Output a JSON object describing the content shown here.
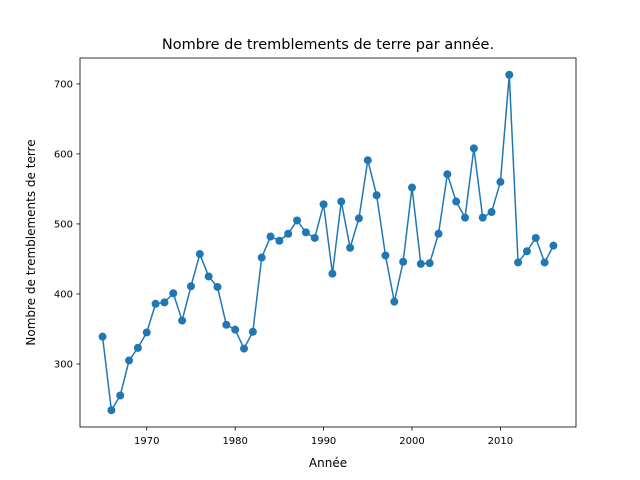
{
  "chart_data": {
    "type": "line",
    "title": "Nombre de tremblements de terre par année.",
    "xlabel": "Année",
    "ylabel": "Nombre de tremblements de terre",
    "xlim": [
      1962.45,
      2018.55
    ],
    "ylim": [
      210,
      737
    ],
    "xticks": [
      1970,
      1980,
      1990,
      2000,
      2010
    ],
    "yticks": [
      300,
      400,
      500,
      600,
      700
    ],
    "grid": false,
    "color": "#1f77b4",
    "markers": true,
    "series": [
      {
        "x": [
          1965,
          1966,
          1967,
          1968,
          1969,
          1970,
          1971,
          1972,
          1973,
          1974,
          1975,
          1976,
          1977,
          1978,
          1979,
          1980,
          1981,
          1982,
          1983,
          1984,
          1985,
          1986,
          1987,
          1988,
          1989,
          1990,
          1991,
          1992,
          1993,
          1994,
          1995,
          1996,
          1997,
          1998,
          1999,
          2000,
          2001,
          2002,
          2003,
          2004,
          2005,
          2006,
          2007,
          2008,
          2009,
          2010,
          2011,
          2012,
          2013,
          2014,
          2015,
          2016
        ],
        "y": [
          339,
          234,
          255,
          305,
          323,
          345,
          386,
          388,
          401,
          362,
          411,
          457,
          425,
          410,
          356,
          349,
          322,
          346,
          452,
          482,
          476,
          486,
          505,
          488,
          480,
          528,
          429,
          532,
          466,
          508,
          591,
          541,
          455,
          389,
          446,
          552,
          443,
          444,
          486,
          571,
          532,
          509,
          608,
          509,
          517,
          560,
          713,
          445,
          461,
          480,
          445,
          469
        ]
      }
    ]
  }
}
